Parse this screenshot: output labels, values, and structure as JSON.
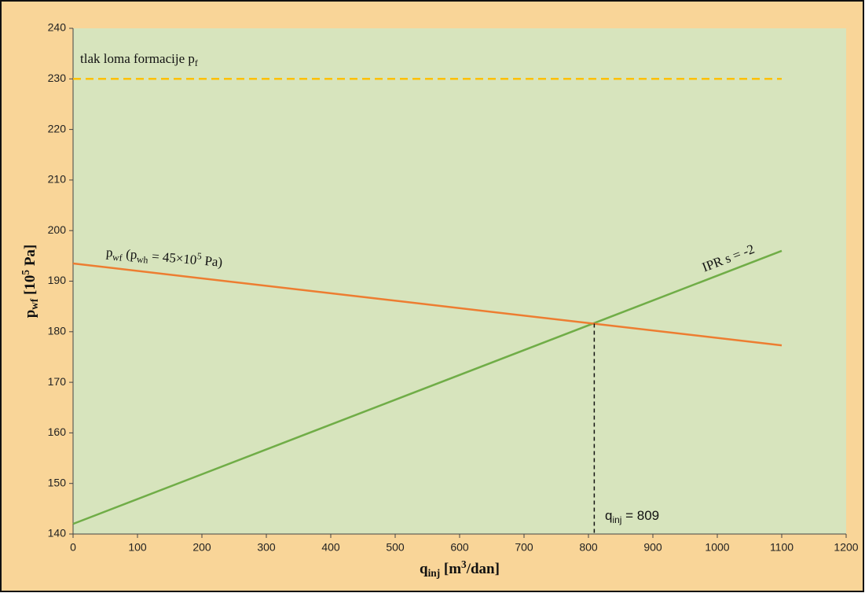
{
  "chart_data": {
    "type": "line",
    "x": [
      0,
      1100
    ],
    "series": [
      {
        "color": "#70ad47",
        "values": [
          142,
          196
        ],
        "dash": "solid"
      },
      {
        "color": "#ed7d31",
        "values": [
          193.5,
          177.3
        ],
        "dash": "solid"
      },
      {
        "color": "#ffc000",
        "values": [
          230,
          230
        ],
        "dash": "dashed"
      }
    ],
    "intersection": {
      "x": 809,
      "y": 181.6
    },
    "xlim": [
      0,
      1200
    ],
    "xticks": [
      0,
      100,
      200,
      300,
      400,
      500,
      600,
      700,
      800,
      900,
      1000,
      1100,
      1200
    ],
    "ylim": [
      140,
      240
    ],
    "yticks": [
      140,
      150,
      160,
      170,
      180,
      190,
      200,
      210,
      220,
      230,
      240
    ],
    "grid": false,
    "xlabel": [
      {
        "text": "q"
      },
      {
        "text": "inj",
        "shift": "sub"
      },
      {
        "text": " [m"
      },
      {
        "text": "3",
        "shift": "sup"
      },
      {
        "text": "/dan]"
      }
    ],
    "ylabel": [
      {
        "text": "p"
      },
      {
        "text": "wf",
        "shift": "sub"
      },
      {
        "text": " [10"
      },
      {
        "text": "5",
        "shift": "sup"
      },
      {
        "text": " Pa]"
      }
    ],
    "annotations": [
      [
        {
          "text": "tlak loma formacije p"
        },
        {
          "text": "f",
          "shift": "sub"
        }
      ],
      [
        {
          "text": "p"
        },
        {
          "text": "wf",
          "shift": "sub"
        },
        {
          "text": " (p"
        },
        {
          "text": "wh",
          "shift": "sub"
        },
        {
          "text": " = 45×10"
        },
        {
          "text": "5",
          "shift": "sup"
        },
        {
          "text": " Pa)"
        }
      ],
      [
        {
          "text": "IPR s = -2"
        }
      ],
      [
        {
          "text": "q"
        },
        {
          "text": "inj",
          "shift": "sub"
        },
        {
          "text": " = 809"
        }
      ]
    ]
  }
}
